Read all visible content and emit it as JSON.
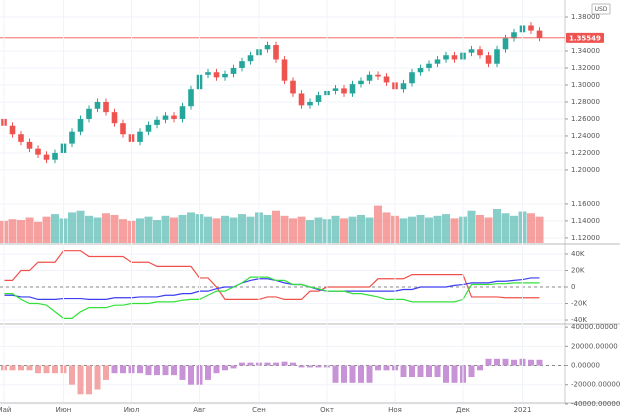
{
  "chart_data": [
    {
      "type": "candlestick",
      "currency": "USD",
      "last_price": 1.35549,
      "up_color": "#26a69a",
      "down_color": "#ef5350",
      "last_price_color": "#ef5350",
      "ylim": [
        1.114,
        1.4
      ],
      "yticks": [
        {
          "value": 1.38,
          "label": "1.38000"
        },
        {
          "value": 1.34,
          "label": "1.34000"
        },
        {
          "value": 1.32,
          "label": "1.32000"
        },
        {
          "value": 1.3,
          "label": "1.30000"
        },
        {
          "value": 1.28,
          "label": "1.28000"
        },
        {
          "value": 1.26,
          "label": "1.26000"
        },
        {
          "value": 1.24,
          "label": "1.24000"
        },
        {
          "value": 1.22,
          "label": "1.22000"
        },
        {
          "value": 1.2,
          "label": "1.20000"
        },
        {
          "value": 1.16,
          "label": "1.16000"
        },
        {
          "value": 1.14,
          "label": "1.14000"
        },
        {
          "value": 1.12,
          "label": "1.12000"
        }
      ],
      "open": [
        1.26,
        1.252,
        1.242,
        1.233,
        1.225,
        1.218,
        1.212,
        1.22,
        1.231,
        1.245,
        1.26,
        1.272,
        1.28,
        1.268,
        1.255,
        1.242,
        1.233,
        1.245,
        1.253,
        1.259,
        1.264,
        1.26,
        1.275,
        1.295,
        1.312,
        1.315,
        1.309,
        1.313,
        1.32,
        1.328,
        1.335,
        1.342,
        1.347,
        1.33,
        1.305,
        1.29,
        1.276,
        1.28,
        1.288,
        1.293,
        1.296,
        1.29,
        1.301,
        1.305,
        1.312,
        1.31,
        1.303,
        1.295,
        1.302,
        1.315,
        1.32,
        1.325,
        1.33,
        1.335,
        1.33,
        1.338,
        1.342,
        1.335,
        1.325,
        1.342,
        1.355,
        1.362,
        1.37,
        1.364
      ],
      "high": [
        1.264,
        1.256,
        1.246,
        1.237,
        1.229,
        1.222,
        1.224,
        1.235,
        1.249,
        1.264,
        1.276,
        1.284,
        1.284,
        1.272,
        1.259,
        1.246,
        1.249,
        1.257,
        1.263,
        1.268,
        1.268,
        1.279,
        1.299,
        1.316,
        1.319,
        1.319,
        1.317,
        1.324,
        1.332,
        1.339,
        1.346,
        1.351,
        1.351,
        1.334,
        1.309,
        1.294,
        1.284,
        1.292,
        1.297,
        1.3,
        1.3,
        1.305,
        1.309,
        1.316,
        1.316,
        1.314,
        1.307,
        1.306,
        1.319,
        1.324,
        1.329,
        1.334,
        1.339,
        1.339,
        1.342,
        1.346,
        1.346,
        1.339,
        1.346,
        1.359,
        1.366,
        1.374,
        1.374,
        1.368
      ],
      "low": [
        1.248,
        1.238,
        1.229,
        1.221,
        1.214,
        1.208,
        1.208,
        1.216,
        1.227,
        1.241,
        1.256,
        1.268,
        1.264,
        1.251,
        1.238,
        1.229,
        1.229,
        1.241,
        1.249,
        1.255,
        1.256,
        1.256,
        1.271,
        1.291,
        1.308,
        1.305,
        1.305,
        1.309,
        1.316,
        1.324,
        1.331,
        1.338,
        1.326,
        1.301,
        1.286,
        1.272,
        1.272,
        1.276,
        1.284,
        1.289,
        1.286,
        1.286,
        1.297,
        1.301,
        1.306,
        1.299,
        1.291,
        1.291,
        1.298,
        1.311,
        1.316,
        1.321,
        1.326,
        1.326,
        1.326,
        1.334,
        1.331,
        1.321,
        1.321,
        1.338,
        1.351,
        1.358,
        1.36,
        1.3515
      ],
      "close": [
        1.252,
        1.242,
        1.233,
        1.225,
        1.218,
        1.212,
        1.22,
        1.231,
        1.245,
        1.26,
        1.272,
        1.28,
        1.268,
        1.255,
        1.242,
        1.233,
        1.245,
        1.253,
        1.259,
        1.264,
        1.26,
        1.275,
        1.295,
        1.312,
        1.315,
        1.309,
        1.313,
        1.32,
        1.328,
        1.335,
        1.342,
        1.347,
        1.33,
        1.305,
        1.29,
        1.276,
        1.28,
        1.288,
        1.293,
        1.296,
        1.29,
        1.301,
        1.305,
        1.312,
        1.31,
        1.303,
        1.295,
        1.302,
        1.315,
        1.32,
        1.325,
        1.33,
        1.335,
        1.33,
        1.338,
        1.342,
        1.335,
        1.325,
        1.342,
        1.355,
        1.362,
        1.37,
        1.364,
        1.35549
      ],
      "volume": [
        1.14,
        1.142,
        1.141,
        1.144,
        1.139,
        1.145,
        1.148,
        1.143,
        1.15,
        1.152,
        1.146,
        1.144,
        1.149,
        1.147,
        1.142,
        1.14,
        1.143,
        1.145,
        1.141,
        1.146,
        1.144,
        1.147,
        1.15,
        1.148,
        1.145,
        1.143,
        1.146,
        1.144,
        1.148,
        1.145,
        1.15,
        1.147,
        1.152,
        1.146,
        1.143,
        1.145,
        1.141,
        1.144,
        1.142,
        1.146,
        1.143,
        1.145,
        1.147,
        1.144,
        1.158,
        1.15,
        1.146,
        1.143,
        1.145,
        1.147,
        1.144,
        1.146,
        1.148,
        1.143,
        1.145,
        1.152,
        1.147,
        1.144,
        1.154,
        1.149,
        1.146,
        1.151,
        1.149,
        1.145
      ]
    },
    {
      "type": "line",
      "ylim": [
        -43600,
        50900
      ],
      "yticks": [
        {
          "value": 40000,
          "label": "40K"
        },
        {
          "value": 20000,
          "label": "20K"
        },
        0,
        {
          "value": -20000,
          "label": "-20K"
        },
        {
          "value": -40000,
          "label": "-40K"
        }
      ],
      "zero_line": true,
      "series": [
        {
          "color": "#f0504a",
          "values": [
            8000,
            8000,
            20000,
            20000,
            30000,
            30000,
            30000,
            44000,
            44000,
            44000,
            37000,
            37000,
            37000,
            37000,
            37000,
            30000,
            30000,
            30000,
            25000,
            25000,
            25000,
            25000,
            25000,
            11000,
            11000,
            0,
            -15000,
            -15000,
            -15000,
            -15000,
            -15000,
            -12000,
            -12000,
            -15000,
            -15000,
            -15000,
            -5000,
            -5000,
            0,
            0,
            0,
            0,
            0,
            0,
            10000,
            10000,
            10000,
            10000,
            15000,
            15000,
            15000,
            15000,
            15000,
            15000,
            15000,
            -12000,
            -12000,
            -12000,
            -12000,
            -13000,
            -13000,
            -13000,
            -13000,
            -13000
          ]
        },
        {
          "color": "#3d3df0",
          "values": [
            -10000,
            -10000,
            -12000,
            -12000,
            -15000,
            -15000,
            -15000,
            -14000,
            -14000,
            -14000,
            -15000,
            -15000,
            -15000,
            -13000,
            -13000,
            -13000,
            -12000,
            -12000,
            -12000,
            -10000,
            -10000,
            -8000,
            -8000,
            -5000,
            -5000,
            -2000,
            0,
            0,
            5000,
            8000,
            10000,
            10000,
            8000,
            5000,
            3000,
            3000,
            0,
            -3000,
            -5000,
            -5000,
            -5000,
            -5000,
            -5000,
            -5000,
            -5000,
            -5000,
            -5000,
            -3000,
            -3000,
            0,
            0,
            0,
            0,
            2000,
            3000,
            5000,
            5000,
            5000,
            7000,
            7000,
            8000,
            9000,
            11000,
            11000
          ]
        },
        {
          "color": "#33e03a",
          "values": [
            -8000,
            -8000,
            -15000,
            -20000,
            -20000,
            -22000,
            -30000,
            -38000,
            -38000,
            -30000,
            -25000,
            -25000,
            -25000,
            -22000,
            -22000,
            -20000,
            -20000,
            -20000,
            -18000,
            -18000,
            -18000,
            -16000,
            -15000,
            -15000,
            -10000,
            -5000,
            -5000,
            0,
            5000,
            12000,
            12000,
            12000,
            8000,
            8000,
            3000,
            3000,
            0,
            -2000,
            -5000,
            -5000,
            -5000,
            -8000,
            -8000,
            -10000,
            -12000,
            -15000,
            -15000,
            -15000,
            -18000,
            -18000,
            -18000,
            -18000,
            -18000,
            -18000,
            -15000,
            3000,
            3000,
            3000,
            4000,
            4000,
            5000,
            5000,
            5000,
            5000
          ]
        }
      ]
    },
    {
      "type": "bar",
      "ylim": [
        -38000,
        42200
      ],
      "yticks": [
        {
          "value": 40000,
          "label": "40000.00000"
        },
        {
          "value": 20000,
          "label": "20000.00000"
        },
        {
          "value": 0,
          "label": "0.00000"
        },
        {
          "value": -20000,
          "label": "-20000.00000"
        },
        {
          "value": -40000,
          "label": "-40000.00000"
        }
      ],
      "zero_line": true,
      "categories": [
        "Май",
        null,
        null,
        null,
        null,
        null,
        null,
        "Июн",
        null,
        null,
        null,
        null,
        null,
        null,
        null,
        "Июл",
        null,
        null,
        null,
        null,
        null,
        null,
        null,
        "Авг",
        null,
        null,
        null,
        null,
        null,
        null,
        "Сен",
        null,
        null,
        null,
        null,
        null,
        null,
        null,
        "Окт",
        null,
        null,
        null,
        null,
        null,
        null,
        null,
        "Ноя",
        null,
        null,
        null,
        null,
        null,
        null,
        null,
        "Дек",
        null,
        null,
        null,
        null,
        null,
        null,
        "2021",
        null,
        null
      ],
      "values": [
        -5000,
        -5000,
        -5000,
        -5000,
        -8000,
        -8000,
        -8000,
        -8000,
        -20000,
        -30000,
        -30000,
        -25000,
        -15000,
        -8000,
        -8000,
        -8000,
        -8000,
        -10000,
        -10000,
        -10000,
        -10000,
        -15000,
        -20000,
        -20000,
        -15000,
        -8000,
        -5000,
        -3000,
        3000,
        3000,
        3000,
        3000,
        3000,
        4000,
        3000,
        -2000,
        -2000,
        -2000,
        -2000,
        -18000,
        -18000,
        -18000,
        -18000,
        -18000,
        -5000,
        -5000,
        -5000,
        -12000,
        -12000,
        -12000,
        -12000,
        -12000,
        -18000,
        -18000,
        -18000,
        -12000,
        -5000,
        7000,
        7000,
        7000,
        6000,
        7000,
        6000,
        6000
      ],
      "colors": [
        "#f4a6a6",
        "#f4a6a6",
        "#f4a6a6",
        "#f4a6a6",
        "#f4a6a6",
        "#f4a6a6",
        "#f4a6a6",
        "#f4a6a6",
        "#f4a6a6",
        "#f4a6a6",
        "#f4a6a6",
        "#f4a6a6",
        "#f4a6a6",
        "#c893d6",
        "#c893d6",
        "#c893d6",
        "#c893d6",
        "#c893d6",
        "#c893d6",
        "#c893d6",
        "#c893d6",
        "#c893d6",
        "#c893d6",
        "#c893d6",
        "#c893d6",
        "#c893d6",
        "#c893d6",
        "#c893d6",
        "#c893d6",
        "#c893d6",
        "#c893d6",
        "#c893d6",
        "#c893d6",
        "#c893d6",
        "#c893d6",
        "#c893d6",
        "#c893d6",
        "#c893d6",
        "#c893d6",
        "#c893d6",
        "#c893d6",
        "#c893d6",
        "#c893d6",
        "#c893d6",
        "#c893d6",
        "#c893d6",
        "#c893d6",
        "#c893d6",
        "#c893d6",
        "#c893d6",
        "#c893d6",
        "#c893d6",
        "#c893d6",
        "#c893d6",
        "#c893d6",
        "#c893d6",
        "#c893d6",
        "#c893d6",
        "#c893d6",
        "#c893d6",
        "#c893d6",
        "#c893d6",
        "#c893d6",
        "#c893d6"
      ]
    }
  ]
}
